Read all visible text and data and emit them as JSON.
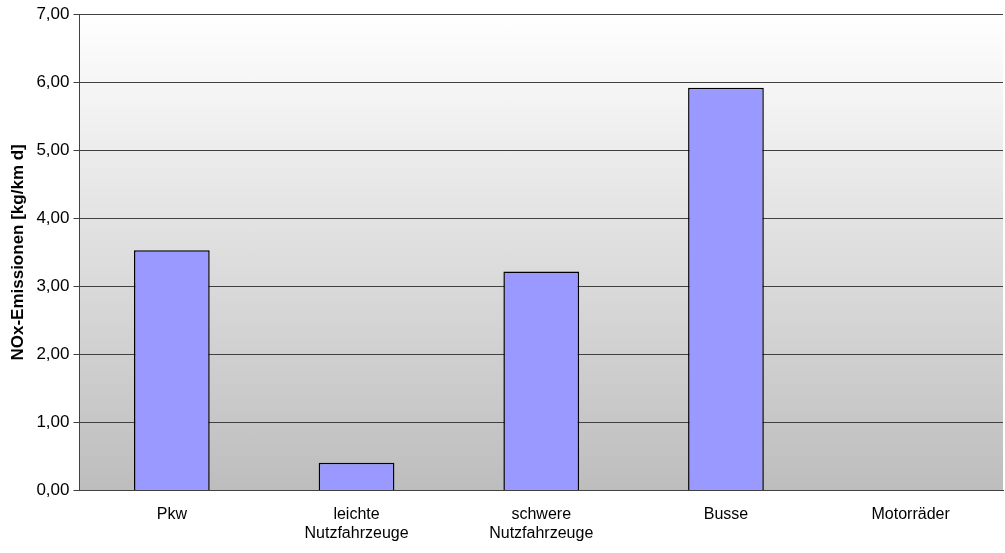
{
  "chart_data": {
    "type": "bar",
    "ylabel": "NOx-Emissionen [kg/km d]",
    "categories": [
      "Pkw",
      "leichte Nutzfahrzeuge",
      "schwere Nutzfahrzeuge",
      "Busse",
      "Motorräder"
    ],
    "values": [
      3.53,
      0.41,
      3.22,
      5.92,
      0
    ],
    "color": "#9999ff",
    "ylim": [
      0,
      7
    ],
    "yticks": [
      {
        "value": 0,
        "label": "0,00"
      },
      {
        "value": 1,
        "label": "1,00"
      },
      {
        "value": 2,
        "label": "2,00"
      },
      {
        "value": 3,
        "label": "3,00"
      },
      {
        "value": 4,
        "label": "4,00"
      },
      {
        "value": 5,
        "label": "5,00"
      },
      {
        "value": 6,
        "label": "6,00"
      },
      {
        "value": 7,
        "label": "7,00"
      }
    ],
    "grid": "y",
    "legend": false
  }
}
